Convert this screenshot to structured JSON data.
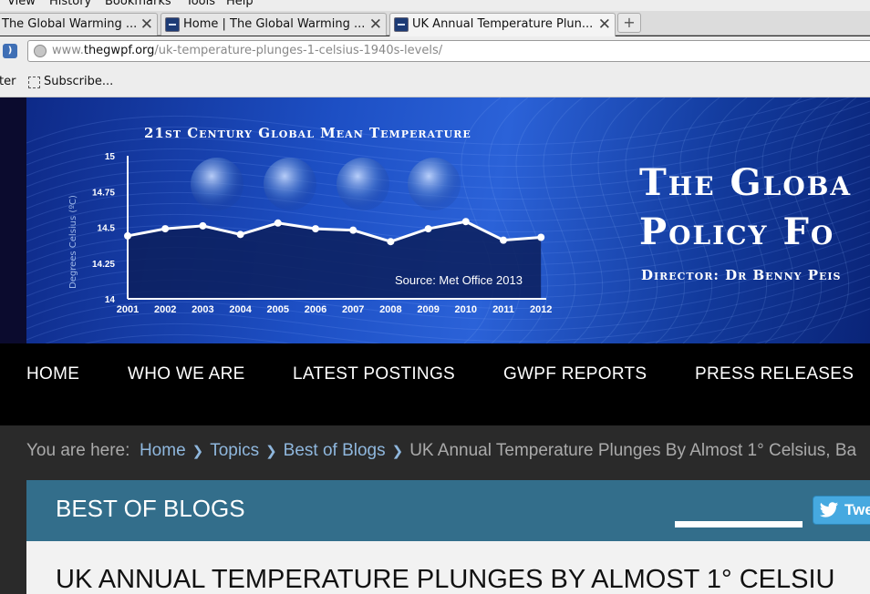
{
  "menubar": {
    "items": [
      "View",
      "History",
      "Bookmarks",
      "Tools",
      "Help"
    ]
  },
  "tabs": [
    {
      "label": "The Global Warming ..."
    },
    {
      "label": "Home | The Global Warming ..."
    },
    {
      "label": "UK Annual Temperature Plun..."
    }
  ],
  "newtab_label": "+",
  "address": {
    "prefix": "www.",
    "domain": "thegwpf.org",
    "path": "/uk-temperature-plunges-1-celsius-1940s-levels/"
  },
  "bookmarks": {
    "item1": "ter",
    "item2": "Subscribe..."
  },
  "banner": {
    "chart_title": "21st Century Global Mean Temperature",
    "ylabel": "Degrees Celsius (ºC)",
    "source": "Source: Met Office 2013",
    "brand_line1": "The Globa",
    "brand_line2": "Policy Fo",
    "director": "Director: Dr Benny Peis"
  },
  "chart_data": {
    "type": "line",
    "title": "21st Century Global Mean Temperature",
    "ylabel": "Degrees Celsius (ºC)",
    "ylim": [
      14,
      15
    ],
    "yticks": [
      "14",
      "14.25",
      "14.5",
      "14.75",
      "15"
    ],
    "x": [
      "2001",
      "2002",
      "2003",
      "2004",
      "2005",
      "2006",
      "2007",
      "2008",
      "2009",
      "2010",
      "2011",
      "2012"
    ],
    "values": [
      14.44,
      14.49,
      14.51,
      14.45,
      14.53,
      14.49,
      14.48,
      14.4,
      14.49,
      14.54,
      14.41,
      14.43
    ]
  },
  "nav": {
    "items": [
      "HOME",
      "WHO WE ARE",
      "LATEST POSTINGS",
      "GWPF REPORTS",
      "PRESS RELEASES"
    ]
  },
  "breadcrumb": {
    "prefix": "You are here:",
    "home": "Home",
    "topics": "Topics",
    "best": "Best of Blogs",
    "current": "UK Annual Temperature Plunges By Almost 1° Celsius, Ba",
    "sep": "❯"
  },
  "section": {
    "title": "BEST OF BLOGS",
    "tweet": "Twe"
  },
  "article": {
    "title": "UK ANNUAL TEMPERATURE PLUNGES BY ALMOST 1° CELSIU"
  },
  "colors": {
    "nav_bg": "#000000",
    "section_bg": "#336e8b",
    "link": "#8fb7dd",
    "tweet": "#46a9e0"
  }
}
